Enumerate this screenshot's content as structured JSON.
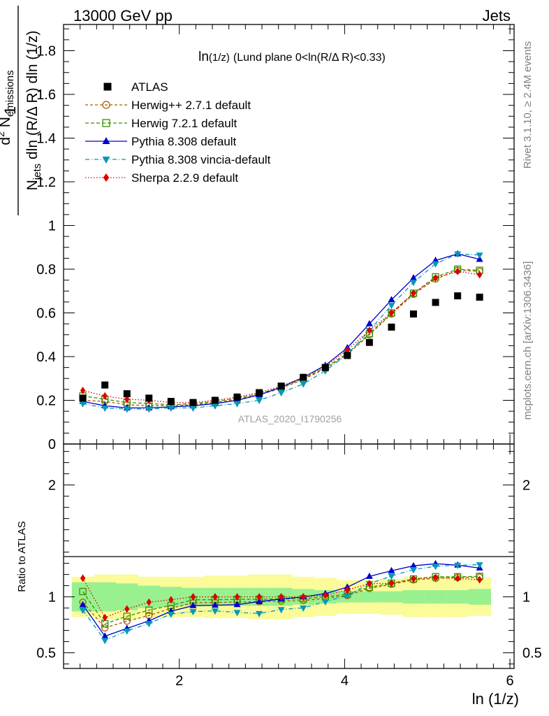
{
  "header": {
    "left": "13000 GeV pp",
    "right": "Jets"
  },
  "side_texts": {
    "rivet": "Rivet 3.1.10, ≥ 2.4M events",
    "mcplots": "mcplots.cern.ch [arXiv:1306.3436]"
  },
  "chart_data": {
    "type": "line",
    "title_main": "ln",
    "title_sub": "(1/z)",
    "title_rest": "(Lund plane 0<ln(R/Δ R)<0.33)",
    "watermark": "ATLAS_2020_I1790256",
    "xlabel": "ln (1/z)",
    "ylabel_upper": {
      "one": "1",
      "denominator": "N",
      "denominator_sub": "jets",
      "denominator_rest": " dln (R/Δ R) dln (1/z)",
      "numerator": "d",
      "numerator_sup": "2",
      "numerator_rest": " N",
      "numerator_sub": "emissions"
    },
    "ylabel_ratio": "Ratio to ATLAS",
    "xlim": [
      0.6,
      6.05
    ],
    "ylim_main": [
      0,
      1.92
    ],
    "ylim_ratio": [
      0.36,
      2.36
    ],
    "x_ticks": [
      "2",
      "4",
      "6"
    ],
    "y_ticks_main": [
      "0",
      "0.2",
      "0.4",
      "0.6",
      "0.8",
      "1",
      "1.2",
      "1.4",
      "1.6",
      "1.8"
    ],
    "y_ticks_ratio": [
      "0.5",
      "1",
      "2"
    ],
    "x": [
      0.833,
      1.1,
      1.367,
      1.633,
      1.9,
      2.167,
      2.433,
      2.7,
      2.967,
      3.233,
      3.5,
      3.767,
      4.033,
      4.3,
      4.567,
      4.833,
      5.1,
      5.367,
      5.633
    ],
    "bin_edges": [
      0.7,
      0.967,
      1.233,
      1.5,
      1.767,
      2.033,
      2.3,
      2.567,
      2.833,
      3.1,
      3.367,
      3.633,
      3.9,
      4.167,
      4.433,
      4.7,
      4.967,
      5.233,
      5.5,
      5.767
    ],
    "atlas": [
      0.21,
      0.27,
      0.23,
      0.21,
      0.195,
      0.19,
      0.2,
      0.215,
      0.235,
      0.265,
      0.305,
      0.35,
      0.405,
      0.465,
      0.535,
      0.595,
      0.648,
      0.678,
      0.672
    ],
    "band_green": [
      0.13,
      0.13,
      0.12,
      0.1,
      0.09,
      0.08,
      0.08,
      0.08,
      0.08,
      0.08,
      0.07,
      0.06,
      0.05,
      0.05,
      0.05,
      0.06,
      0.06,
      0.06,
      0.07
    ],
    "band_yellow": [
      0.18,
      0.2,
      0.2,
      0.18,
      0.18,
      0.18,
      0.19,
      0.19,
      0.2,
      0.2,
      0.18,
      0.17,
      0.15,
      0.15,
      0.16,
      0.18,
      0.18,
      0.18,
      0.17
    ],
    "legend": [
      {
        "label": "ATLAS"
      },
      {
        "label": "Herwig++ 2.7.1 default"
      },
      {
        "label": "Herwig 7.2.1 default"
      },
      {
        "label": "Pythia 8.308 default"
      },
      {
        "label": "Pythia 8.308 vincia-default"
      },
      {
        "label": "Sherpa 2.2.9 default"
      }
    ],
    "series": [
      {
        "name": "Herwig++ 2.7.1 default",
        "color": "#a65a00",
        "marker": "circle-open",
        "dash": "4,3",
        "values": [
          0.2,
          0.195,
          0.18,
          0.175,
          0.175,
          0.18,
          0.19,
          0.205,
          0.225,
          0.255,
          0.295,
          0.345,
          0.41,
          0.5,
          0.595,
          0.685,
          0.755,
          0.795,
          0.79
        ]
      },
      {
        "name": "Herwig 7.2.1 default",
        "color": "#3a8f00",
        "marker": "square-open",
        "dash": "5,3",
        "values": [
          0.22,
          0.205,
          0.19,
          0.185,
          0.18,
          0.185,
          0.195,
          0.21,
          0.23,
          0.26,
          0.3,
          0.35,
          0.415,
          0.505,
          0.6,
          0.69,
          0.765,
          0.8,
          0.795
        ]
      },
      {
        "name": "Pythia 8.308 default",
        "color": "#0000cc",
        "marker": "triangle-up",
        "dash": "",
        "values": [
          0.195,
          0.175,
          0.165,
          0.165,
          0.17,
          0.175,
          0.185,
          0.2,
          0.225,
          0.26,
          0.305,
          0.36,
          0.44,
          0.55,
          0.66,
          0.76,
          0.84,
          0.87,
          0.845
        ]
      },
      {
        "name": "Pythia 8.308 vincia-default",
        "color": "#0099bb",
        "marker": "triangle-down",
        "dash": "6,3,1,3",
        "values": [
          0.185,
          0.165,
          0.16,
          0.16,
          0.165,
          0.165,
          0.175,
          0.185,
          0.2,
          0.235,
          0.275,
          0.335,
          0.41,
          0.52,
          0.635,
          0.74,
          0.825,
          0.87,
          0.865
        ]
      },
      {
        "name": "Sherpa 2.2.9 default",
        "color": "#dd0000",
        "marker": "diamond",
        "dash": "1.5,2.5",
        "values": [
          0.245,
          0.22,
          0.205,
          0.2,
          0.19,
          0.19,
          0.2,
          0.215,
          0.235,
          0.265,
          0.305,
          0.355,
          0.43,
          0.52,
          0.6,
          0.69,
          0.76,
          0.79,
          0.775
        ]
      }
    ]
  }
}
